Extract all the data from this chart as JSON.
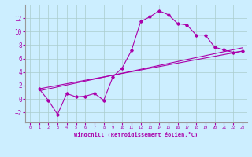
{
  "xlabel": "Windchill (Refroidissement éolien,°C)",
  "background_color": "#cceeff",
  "grid_color": "#aacccc",
  "line_color": "#aa00aa",
  "xlim": [
    -0.5,
    23.5
  ],
  "ylim": [
    -3.5,
    14.0
  ],
  "xticks": [
    0,
    1,
    2,
    3,
    4,
    5,
    6,
    7,
    8,
    9,
    10,
    11,
    12,
    13,
    14,
    15,
    16,
    17,
    18,
    19,
    20,
    21,
    22,
    23
  ],
  "yticks": [
    -2,
    0,
    2,
    4,
    6,
    8,
    10,
    12
  ],
  "main_x": [
    1,
    2,
    3,
    4,
    5,
    6,
    7,
    8,
    9,
    10,
    11,
    12,
    13,
    14,
    15,
    16,
    17,
    18,
    19,
    20,
    21,
    22,
    23
  ],
  "main_y": [
    1.5,
    -0.2,
    -2.3,
    0.8,
    0.3,
    0.4,
    0.8,
    -0.2,
    3.3,
    4.6,
    7.2,
    11.5,
    12.2,
    13.1,
    12.5,
    11.2,
    11.0,
    9.5,
    9.5,
    7.7,
    7.3,
    6.9,
    7.1
  ],
  "trend1_x": [
    1,
    23
  ],
  "trend1_y": [
    1.5,
    7.1
  ],
  "trend2_x": [
    1,
    23
  ],
  "trend2_y": [
    1.2,
    7.6
  ]
}
